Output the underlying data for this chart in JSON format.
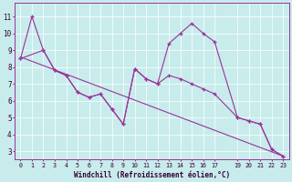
{
  "xlabel": "Windchill (Refroidissement éolien,°C)",
  "bg_color": "#c8ecec",
  "line_color": "#993399",
  "xlim_min": -0.5,
  "xlim_max": 23.5,
  "ylim_min": 2.5,
  "ylim_max": 11.8,
  "yticks": [
    3,
    4,
    5,
    6,
    7,
    8,
    9,
    10,
    11
  ],
  "xticks": [
    0,
    1,
    2,
    3,
    4,
    5,
    6,
    7,
    8,
    9,
    10,
    11,
    12,
    13,
    14,
    15,
    16,
    17,
    19,
    20,
    21,
    22,
    23
  ],
  "line1_x": [
    0,
    1,
    2,
    3,
    4,
    5,
    6,
    7,
    8,
    9,
    10,
    11,
    12,
    13,
    14,
    15,
    16,
    17,
    19,
    20,
    21,
    22,
    23
  ],
  "line1_y": [
    8.5,
    11.0,
    9.0,
    7.8,
    7.5,
    6.5,
    6.2,
    6.4,
    5.5,
    4.6,
    7.9,
    7.3,
    7.0,
    9.4,
    10.0,
    10.6,
    10.0,
    9.5,
    5.0,
    4.8,
    4.6,
    3.1,
    2.7
  ],
  "line2_x": [
    0,
    2,
    3,
    4,
    5,
    6,
    7,
    8,
    9,
    10,
    11,
    12,
    13,
    14,
    15,
    16,
    17,
    19,
    20,
    21,
    22,
    23
  ],
  "line2_y": [
    8.5,
    9.0,
    7.8,
    7.5,
    6.5,
    6.2,
    6.4,
    5.5,
    4.6,
    7.9,
    7.3,
    7.0,
    7.5,
    7.3,
    7.0,
    6.7,
    6.4,
    5.0,
    4.8,
    4.6,
    3.1,
    2.7
  ],
  "trend_x": [
    0,
    23
  ],
  "trend_y": [
    8.6,
    2.7
  ]
}
